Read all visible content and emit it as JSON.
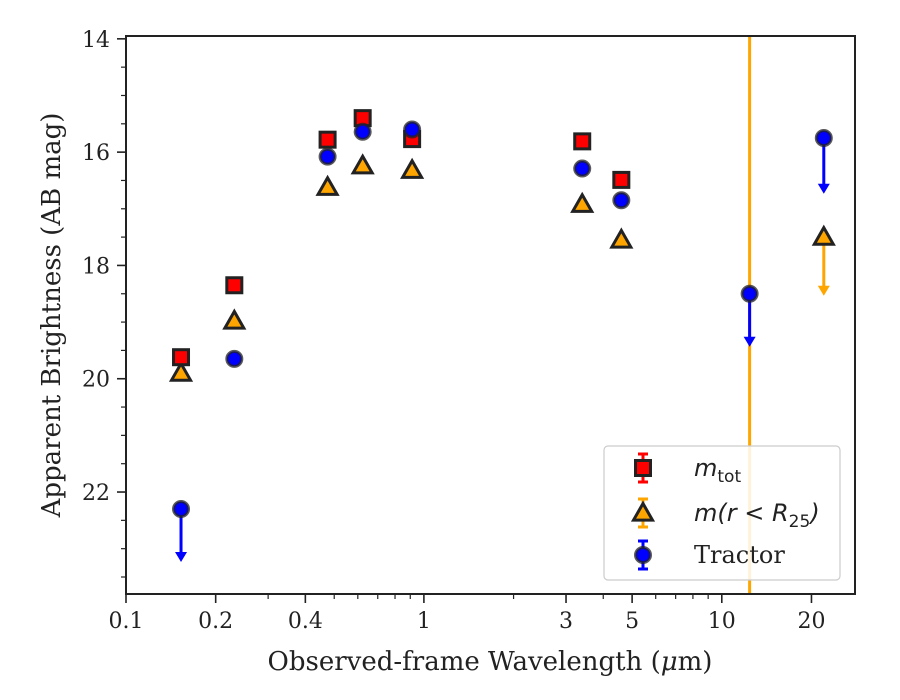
{
  "chart_data": {
    "type": "scatter",
    "xlabel_prefix": "Observed-frame Wavelength (",
    "xlabel_unit": "μ",
    "xlabel_suffix": "m)",
    "ylabel": "Apparent Brightness (AB mag)",
    "x_scale": "log",
    "xlim": [
      0.1,
      28
    ],
    "ylim": [
      23.8,
      13.95
    ],
    "y_inverted": true,
    "x_ticks": [
      {
        "value": 0.1,
        "label": "0.1"
      },
      {
        "value": 0.2,
        "label": "0.2"
      },
      {
        "value": 0.4,
        "label": "0.4"
      },
      {
        "value": 1,
        "label": "1"
      },
      {
        "value": 3,
        "label": "3"
      },
      {
        "value": 5,
        "label": "5"
      },
      {
        "value": 10,
        "label": "10"
      },
      {
        "value": 20,
        "label": "20"
      }
    ],
    "y_ticks": [
      {
        "value": 14,
        "label": "14"
      },
      {
        "value": 16,
        "label": "16"
      },
      {
        "value": 18,
        "label": "18"
      },
      {
        "value": 20,
        "label": "20"
      },
      {
        "value": 22,
        "label": "22"
      }
    ],
    "y_minor_ticks": [
      14.5,
      15,
      15.5,
      16.5,
      17,
      17.5,
      18.5,
      19,
      19.5,
      20.5,
      21,
      21.5,
      22.5,
      23,
      23.5
    ],
    "grid": false,
    "legend_position": "bottom-right",
    "vertical_line": {
      "x": 12.4,
      "color": "#FFA500"
    },
    "series": [
      {
        "key": "m_tot",
        "marker": "square",
        "color": "#FF0000",
        "edge": "#222222",
        "errbar_color": "#FF0000",
        "points": [
          {
            "x": 0.153,
            "y": 19.62
          },
          {
            "x": 0.231,
            "y": 18.35
          },
          {
            "x": 0.475,
            "y": 15.78
          },
          {
            "x": 0.623,
            "y": 15.4
          },
          {
            "x": 0.913,
            "y": 15.77
          },
          {
            "x": 3.4,
            "y": 15.81
          },
          {
            "x": 4.6,
            "y": 16.49
          }
        ]
      },
      {
        "key": "m_r25",
        "marker": "triangle",
        "color": "#FFA500",
        "edge": "#222222",
        "errbar_color": "#FFA500",
        "points": [
          {
            "x": 0.153,
            "y": 19.9
          },
          {
            "x": 0.231,
            "y": 18.98
          },
          {
            "x": 0.475,
            "y": 16.62
          },
          {
            "x": 0.623,
            "y": 16.24
          },
          {
            "x": 0.913,
            "y": 16.32
          },
          {
            "x": 3.4,
            "y": 16.92
          },
          {
            "x": 4.6,
            "y": 17.55
          },
          {
            "x": 22.0,
            "y": 17.5,
            "upper_limit": true,
            "arrow_to": 18.5
          }
        ]
      },
      {
        "key": "tractor",
        "marker": "circle",
        "color": "#0000FF",
        "edge": "#222222",
        "errbar_color": "#0000FF",
        "points": [
          {
            "x": 0.153,
            "y": 22.3,
            "upper_limit": true,
            "arrow_to": 23.2
          },
          {
            "x": 0.231,
            "y": 19.65
          },
          {
            "x": 0.475,
            "y": 16.08
          },
          {
            "x": 0.623,
            "y": 15.64
          },
          {
            "x": 0.913,
            "y": 15.6
          },
          {
            "x": 3.4,
            "y": 16.29
          },
          {
            "x": 4.6,
            "y": 16.85
          },
          {
            "x": 12.4,
            "y": 18.5,
            "upper_limit": true,
            "arrow_to": 19.4
          },
          {
            "x": 22.0,
            "y": 15.75,
            "upper_limit": true,
            "arrow_to": 16.7
          }
        ]
      }
    ],
    "legend": {
      "entries": [
        {
          "series": "m_tot",
          "math_base": "m",
          "math_sub": "tot",
          "math_rest": ""
        },
        {
          "series": "m_r25",
          "math_base": "m",
          "math_rest": "(r < R",
          "math_sub": "25",
          "math_close": ")"
        },
        {
          "series": "tractor",
          "text": "Tractor"
        }
      ]
    }
  }
}
